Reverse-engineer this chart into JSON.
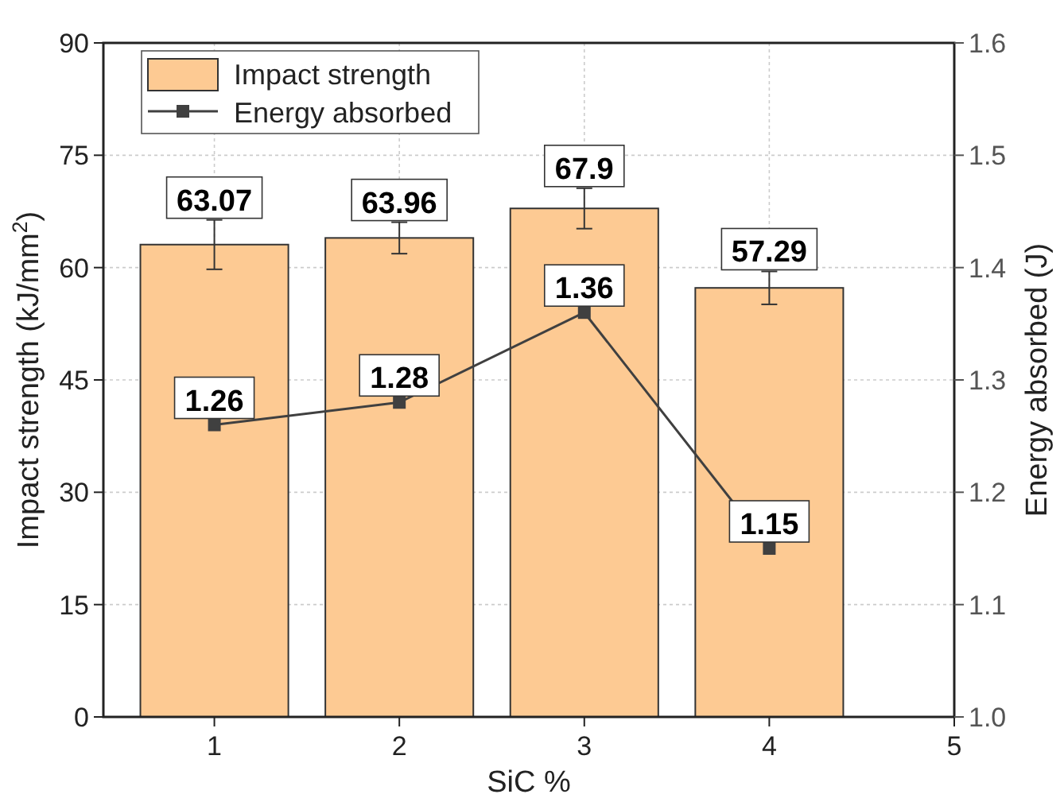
{
  "chart_data": {
    "type": "bar",
    "xlabel": "SiC %",
    "ylabel": "Impact strength (kJ/mm$^{2}$)",
    "y2label": "Energy absorbed (J)",
    "x": [
      1,
      2,
      3,
      4
    ],
    "xlim": [
      0.4,
      5
    ],
    "xticks": [
      1,
      2,
      3,
      4,
      5
    ],
    "ylim": [
      0,
      90
    ],
    "yticks": [
      0,
      15,
      30,
      45,
      60,
      75,
      90
    ],
    "y2lim": [
      1.0,
      1.6
    ],
    "y2ticks": [
      {
        "value": 1.0,
        "label": "1.0"
      },
      1.1,
      1.2,
      1.3,
      1.4,
      1.5,
      1.6
    ],
    "series": [
      {
        "name": "Impact strength",
        "color": "#fdca93",
        "values": [
          63.07,
          63.96,
          67.9,
          57.29
        ],
        "errors": [
          3.3,
          2.1,
          2.7,
          2.2
        ]
      },
      {
        "name": "Energy absorbed",
        "type": "line",
        "axis": "y2",
        "color": "#404040",
        "values": [
          1.26,
          1.28,
          1.36,
          1.15
        ],
        "marker": "square"
      }
    ],
    "data_labels": true,
    "grid": true,
    "legend": "top left"
  }
}
